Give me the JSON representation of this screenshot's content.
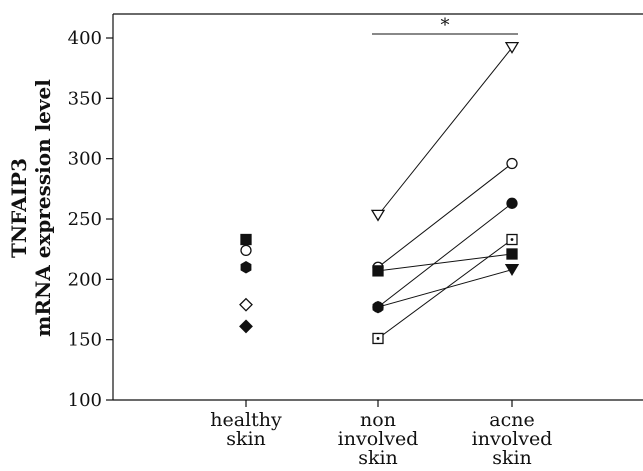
{
  "chart_data": {
    "type": "scatter",
    "title": "",
    "ylabel_lines": [
      "TNFAIP3",
      "mRNA expression level"
    ],
    "xlabel": "",
    "ylim": [
      100,
      400
    ],
    "yticks": [
      100,
      150,
      200,
      250,
      300,
      350,
      400
    ],
    "categories": [
      {
        "lines": [
          "healthy",
          "skin"
        ]
      },
      {
        "lines": [
          "non",
          "involved",
          "skin"
        ]
      },
      {
        "lines": [
          "acne",
          "involved",
          "skin"
        ]
      }
    ],
    "healthy_points": [
      {
        "marker": "filled-square",
        "value": 233
      },
      {
        "marker": "open-circle",
        "value": 224
      },
      {
        "marker": "filled-hexagon",
        "value": 210
      },
      {
        "marker": "open-diamond",
        "value": 179
      },
      {
        "marker": "filled-diamond",
        "value": 161
      }
    ],
    "paired_series": [
      {
        "marker": "open-triangle-down",
        "values": [
          253,
          392
        ]
      },
      {
        "marker": "open-circle",
        "values": [
          210,
          296
        ]
      },
      {
        "marker": "filled-circle",
        "values": [
          177,
          263
        ]
      },
      {
        "marker": "filled-square",
        "values": [
          207,
          221
        ]
      },
      {
        "marker": "filled-hexagon",
        "values": [
          177,
          208
        ],
        "end_marker": "filled-triangle-down"
      },
      {
        "marker": "dotted-square",
        "values": [
          151,
          233
        ]
      }
    ],
    "significance": {
      "label": "*",
      "from_category": 1,
      "to_category": 2
    },
    "grid": false,
    "colors": {
      "ink": "#111111",
      "background": "#ffffff"
    }
  }
}
